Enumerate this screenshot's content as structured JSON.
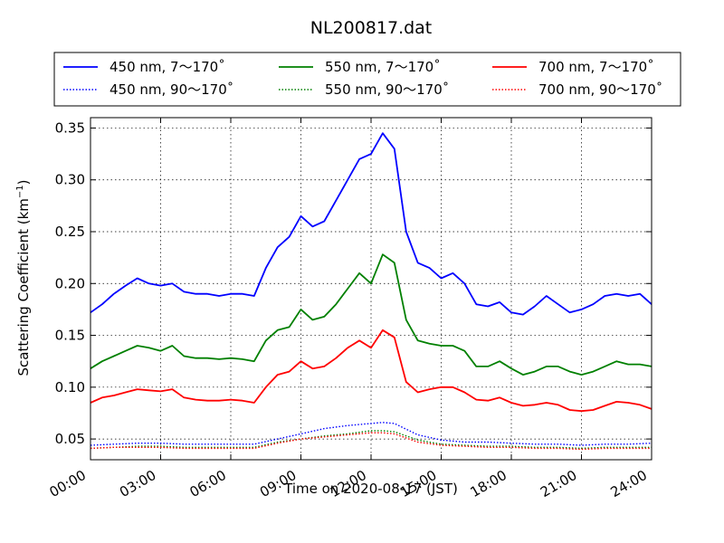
{
  "chart_data": {
    "type": "line",
    "title": "NL200817.dat",
    "xlabel": "Time on 2020-08-17 (JST)",
    "ylabel_main": "Scattering Coefficient (km",
    "ylabel_exp": "−1",
    "ylabel_close": ")",
    "x_unit": "hours",
    "xlim": [
      0,
      24
    ],
    "ylim": [
      0.03,
      0.36
    ],
    "grid": true,
    "legend_position": "top",
    "x_ticks": [
      {
        "value": 0,
        "label": "00:00"
      },
      {
        "value": 3,
        "label": "03:00"
      },
      {
        "value": 6,
        "label": "06:00"
      },
      {
        "value": 9,
        "label": "09:00"
      },
      {
        "value": 12,
        "label": "12:00"
      },
      {
        "value": 15,
        "label": "15:00"
      },
      {
        "value": 18,
        "label": "18:00"
      },
      {
        "value": 21,
        "label": "21:00"
      },
      {
        "value": 24,
        "label": "24:00"
      }
    ],
    "y_ticks": [
      {
        "value": 0.05,
        "label": "0.05"
      },
      {
        "value": 0.1,
        "label": "0.10"
      },
      {
        "value": 0.15,
        "label": "0.15"
      },
      {
        "value": 0.2,
        "label": "0.20"
      },
      {
        "value": 0.25,
        "label": "0.25"
      },
      {
        "value": 0.3,
        "label": "0.30"
      },
      {
        "value": 0.35,
        "label": "0.35"
      }
    ],
    "series": [
      {
        "name": "450 nm, 7～170˚",
        "color": "#0000ff",
        "style": "solid",
        "x": [
          0,
          0.5,
          1,
          1.5,
          2,
          2.5,
          3,
          3.5,
          4,
          4.5,
          5,
          5.5,
          6,
          6.5,
          7,
          7.5,
          8,
          8.5,
          9,
          9.5,
          10,
          10.5,
          11,
          11.5,
          12,
          12.5,
          13,
          13.5,
          14,
          14.5,
          15,
          15.5,
          16,
          16.5,
          17,
          17.5,
          18,
          18.5,
          19,
          19.5,
          20,
          20.5,
          21,
          21.5,
          22,
          22.5,
          23,
          23.5,
          24
        ],
        "y": [
          0.172,
          0.18,
          0.19,
          0.198,
          0.205,
          0.2,
          0.198,
          0.2,
          0.192,
          0.19,
          0.19,
          0.188,
          0.19,
          0.19,
          0.188,
          0.215,
          0.235,
          0.245,
          0.265,
          0.255,
          0.26,
          0.28,
          0.3,
          0.32,
          0.325,
          0.345,
          0.33,
          0.25,
          0.22,
          0.215,
          0.205,
          0.21,
          0.2,
          0.18,
          0.178,
          0.182,
          0.172,
          0.17,
          0.178,
          0.188,
          0.18,
          0.172,
          0.175,
          0.18,
          0.188,
          0.19,
          0.188,
          0.19,
          0.18
        ]
      },
      {
        "name": "450 nm, 90～170˚",
        "color": "#0000ff",
        "style": "dotted",
        "x": [
          0,
          1,
          2,
          3,
          4,
          5,
          6,
          7,
          8,
          9,
          10,
          11,
          12,
          12.5,
          13,
          14,
          15,
          16,
          17,
          18,
          19,
          20,
          21,
          22,
          23,
          24
        ],
        "y": [
          0.044,
          0.045,
          0.046,
          0.046,
          0.045,
          0.045,
          0.045,
          0.045,
          0.05,
          0.055,
          0.06,
          0.063,
          0.065,
          0.066,
          0.065,
          0.054,
          0.049,
          0.047,
          0.047,
          0.046,
          0.045,
          0.045,
          0.044,
          0.045,
          0.045,
          0.046
        ]
      },
      {
        "name": "550 nm, 7～170˚",
        "color": "#008000",
        "style": "solid",
        "x": [
          0,
          0.5,
          1,
          1.5,
          2,
          2.5,
          3,
          3.5,
          4,
          4.5,
          5,
          5.5,
          6,
          6.5,
          7,
          7.5,
          8,
          8.5,
          9,
          9.5,
          10,
          10.5,
          11,
          11.5,
          12,
          12.5,
          13,
          13.5,
          14,
          14.5,
          15,
          15.5,
          16,
          16.5,
          17,
          17.5,
          18,
          18.5,
          19,
          19.5,
          20,
          20.5,
          21,
          21.5,
          22,
          22.5,
          23,
          23.5,
          24
        ],
        "y": [
          0.118,
          0.125,
          0.13,
          0.135,
          0.14,
          0.138,
          0.135,
          0.14,
          0.13,
          0.128,
          0.128,
          0.127,
          0.128,
          0.127,
          0.125,
          0.145,
          0.155,
          0.158,
          0.175,
          0.165,
          0.168,
          0.18,
          0.195,
          0.21,
          0.2,
          0.228,
          0.22,
          0.165,
          0.145,
          0.142,
          0.14,
          0.14,
          0.135,
          0.12,
          0.12,
          0.125,
          0.118,
          0.112,
          0.115,
          0.12,
          0.12,
          0.115,
          0.112,
          0.115,
          0.12,
          0.125,
          0.122,
          0.122,
          0.12
        ]
      },
      {
        "name": "550 nm, 90～170˚",
        "color": "#008000",
        "style": "dotted",
        "x": [
          0,
          1,
          2,
          3,
          4,
          5,
          6,
          7,
          8,
          9,
          10,
          11,
          12,
          12.5,
          13,
          14,
          15,
          16,
          17,
          18,
          19,
          20,
          21,
          22,
          23,
          24
        ],
        "y": [
          0.041,
          0.042,
          0.043,
          0.043,
          0.042,
          0.042,
          0.042,
          0.042,
          0.047,
          0.05,
          0.053,
          0.055,
          0.058,
          0.058,
          0.057,
          0.049,
          0.045,
          0.044,
          0.043,
          0.043,
          0.042,
          0.042,
          0.041,
          0.042,
          0.042,
          0.042
        ]
      },
      {
        "name": "700 nm, 7～170˚",
        "color": "#ff0000",
        "style": "solid",
        "x": [
          0,
          0.5,
          1,
          1.5,
          2,
          2.5,
          3,
          3.5,
          4,
          4.5,
          5,
          5.5,
          6,
          6.5,
          7,
          7.5,
          8,
          8.5,
          9,
          9.5,
          10,
          10.5,
          11,
          11.5,
          12,
          12.5,
          13,
          13.5,
          14,
          14.5,
          15,
          15.5,
          16,
          16.5,
          17,
          17.5,
          18,
          18.5,
          19,
          19.5,
          20,
          20.5,
          21,
          21.5,
          22,
          22.5,
          23,
          23.5,
          24
        ],
        "y": [
          0.085,
          0.09,
          0.092,
          0.095,
          0.098,
          0.097,
          0.096,
          0.098,
          0.09,
          0.088,
          0.087,
          0.087,
          0.088,
          0.087,
          0.085,
          0.1,
          0.112,
          0.115,
          0.125,
          0.118,
          0.12,
          0.128,
          0.138,
          0.145,
          0.138,
          0.155,
          0.148,
          0.105,
          0.095,
          0.098,
          0.1,
          0.1,
          0.095,
          0.088,
          0.087,
          0.09,
          0.085,
          0.082,
          0.083,
          0.085,
          0.083,
          0.078,
          0.077,
          0.078,
          0.082,
          0.086,
          0.085,
          0.083,
          0.079
        ]
      },
      {
        "name": "700 nm, 90～170˚",
        "color": "#ff0000",
        "style": "dotted",
        "x": [
          0,
          1,
          2,
          3,
          4,
          5,
          6,
          7,
          8,
          9,
          10,
          11,
          12,
          12.5,
          13,
          14,
          15,
          16,
          17,
          18,
          19,
          20,
          21,
          22,
          23,
          24
        ],
        "y": [
          0.041,
          0.042,
          0.042,
          0.042,
          0.041,
          0.041,
          0.041,
          0.041,
          0.046,
          0.05,
          0.052,
          0.054,
          0.056,
          0.056,
          0.055,
          0.047,
          0.044,
          0.043,
          0.042,
          0.042,
          0.041,
          0.041,
          0.04,
          0.041,
          0.041,
          0.041
        ]
      }
    ]
  }
}
